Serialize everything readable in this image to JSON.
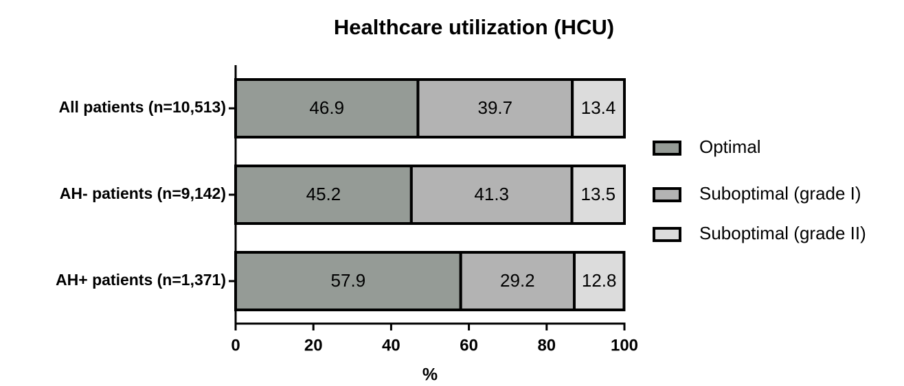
{
  "chart_data": {
    "type": "stacked-bar-horizontal",
    "title": "Healthcare utilization (HCU)",
    "xlabel": "%",
    "categories": [
      "All patients (n=10,513)",
      "AH- patients (n=9,142)",
      "AH+ patients (n=1,371)"
    ],
    "series": [
      {
        "name": "Optimal",
        "color": "#959b96",
        "values": [
          46.9,
          45.2,
          57.9
        ]
      },
      {
        "name": "Suboptimal (grade I)",
        "color": "#b3b3b3",
        "values": [
          39.7,
          41.3,
          29.2
        ]
      },
      {
        "name": "Suboptimal (grade II)",
        "color": "#dcdcdc",
        "values": [
          13.4,
          13.5,
          12.8
        ]
      }
    ],
    "xlim": [
      0,
      100
    ],
    "xticks": [
      0,
      20,
      40,
      60,
      80,
      100
    ],
    "legend": "right"
  }
}
